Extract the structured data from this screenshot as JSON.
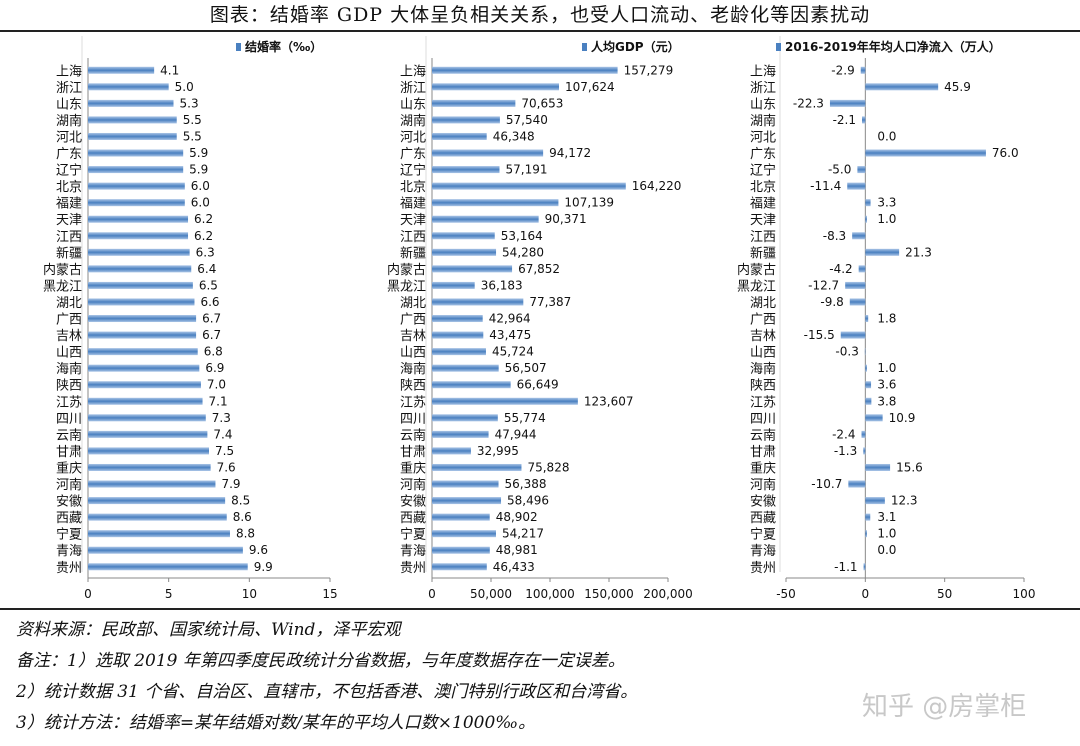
{
  "title": "图表：结婚率 GDP 大体呈负相关关系，也受人口流动、老龄化等因素扰动",
  "colors": {
    "bar": "#4a80c0",
    "bar_light": "#a9c4e6",
    "axis": "#888888"
  },
  "chart_data": [
    {
      "type": "bar",
      "orientation": "horizontal",
      "legend": "结婚率（‰）",
      "categories": [
        "上海",
        "浙江",
        "山东",
        "湖南",
        "河北",
        "广东",
        "辽宁",
        "北京",
        "福建",
        "天津",
        "江西",
        "新疆",
        "内蒙古",
        "黑龙江",
        "湖北",
        "广西",
        "吉林",
        "山西",
        "海南",
        "陕西",
        "江苏",
        "四川",
        "云南",
        "甘肃",
        "重庆",
        "河南",
        "安徽",
        "西藏",
        "宁夏",
        "青海",
        "贵州"
      ],
      "values": [
        4.1,
        5.0,
        5.3,
        5.5,
        5.5,
        5.9,
        5.9,
        6.0,
        6.0,
        6.2,
        6.2,
        6.3,
        6.4,
        6.5,
        6.6,
        6.7,
        6.7,
        6.8,
        6.9,
        7.0,
        7.1,
        7.3,
        7.4,
        7.5,
        7.6,
        7.9,
        8.5,
        8.6,
        8.8,
        9.6,
        9.9
      ],
      "labels": [
        "4.1",
        "5.0",
        "5.3",
        "5.5",
        "5.5",
        "5.9",
        "5.9",
        "6.0",
        "6.0",
        "6.2",
        "6.2",
        "6.3",
        "6.4",
        "6.5",
        "6.6",
        "6.7",
        "6.7",
        "6.8",
        "6.9",
        "7.0",
        "7.1",
        "7.3",
        "7.4",
        "7.5",
        "7.6",
        "7.9",
        "8.5",
        "8.6",
        "8.8",
        "9.6",
        "9.9"
      ],
      "xlim": [
        0,
        15
      ],
      "ticks": [
        0,
        5,
        10,
        15
      ],
      "tick_labels": [
        "0",
        "5",
        "10",
        "15"
      ]
    },
    {
      "type": "bar",
      "orientation": "horizontal",
      "legend": "人均GDP（元）",
      "categories": [
        "上海",
        "浙江",
        "山东",
        "湖南",
        "河北",
        "广东",
        "辽宁",
        "北京",
        "福建",
        "天津",
        "江西",
        "新疆",
        "内蒙古",
        "黑龙江",
        "湖北",
        "广西",
        "吉林",
        "山西",
        "海南",
        "陕西",
        "江苏",
        "四川",
        "云南",
        "甘肃",
        "重庆",
        "河南",
        "安徽",
        "西藏",
        "宁夏",
        "青海",
        "贵州"
      ],
      "values": [
        157279,
        107624,
        70653,
        57540,
        46348,
        94172,
        57191,
        164220,
        107139,
        90371,
        53164,
        54280,
        67852,
        36183,
        77387,
        42964,
        43475,
        45724,
        56507,
        66649,
        123607,
        55774,
        47944,
        32995,
        75828,
        56388,
        58496,
        48902,
        54217,
        48981,
        46433
      ],
      "labels": [
        "157,279",
        "107,624",
        "70,653",
        "57,540",
        "46,348",
        "94,172",
        "57,191",
        "164,220",
        "107,139",
        "90,371",
        "53,164",
        "54,280",
        "67,852",
        "36,183",
        "77,387",
        "42,964",
        "43,475",
        "45,724",
        "56,507",
        "66,649",
        "123,607",
        "55,774",
        "47,944",
        "32,995",
        "75,828",
        "56,388",
        "58,496",
        "48,902",
        "54,217",
        "48,981",
        "46,433"
      ],
      "xlim": [
        0,
        200000
      ],
      "ticks": [
        0,
        50000,
        100000,
        150000,
        200000
      ],
      "tick_labels": [
        "0",
        "50,000",
        "100,000",
        "150,000",
        "200,000"
      ]
    },
    {
      "type": "bar",
      "orientation": "horizontal",
      "legend": "2016-2019年年均人口净流入（万人）",
      "categories": [
        "上海",
        "浙江",
        "山东",
        "湖南",
        "河北",
        "广东",
        "辽宁",
        "北京",
        "福建",
        "天津",
        "江西",
        "新疆",
        "内蒙古",
        "黑龙江",
        "湖北",
        "广西",
        "吉林",
        "山西",
        "海南",
        "陕西",
        "江苏",
        "四川",
        "云南",
        "甘肃",
        "重庆",
        "河南",
        "安徽",
        "西藏",
        "宁夏",
        "青海",
        "贵州"
      ],
      "values": [
        -2.9,
        45.9,
        -22.3,
        -2.1,
        0.0,
        76.0,
        -5.0,
        -11.4,
        3.3,
        1.0,
        -8.3,
        21.3,
        -4.2,
        -12.7,
        -9.8,
        1.8,
        -15.5,
        -0.3,
        1.0,
        3.6,
        3.8,
        10.9,
        -2.4,
        -1.3,
        15.6,
        -10.7,
        12.3,
        3.1,
        1.0,
        0.0,
        -1.1
      ],
      "labels": [
        "-2.9",
        "45.9",
        "-22.3",
        "-2.1",
        "0.0",
        "76.0",
        "-5.0",
        "-11.4",
        "3.3",
        "1.0",
        "-8.3",
        "21.3",
        "-4.2",
        "-12.7",
        "-9.8",
        "1.8",
        "-15.5",
        "-0.3",
        "1.0",
        "3.6",
        "3.8",
        "10.9",
        "-2.4",
        "-1.3",
        "15.6",
        "-10.7",
        "12.3",
        "3.1",
        "1.0",
        "0.0",
        "-1.1"
      ],
      "xlim": [
        -50,
        100
      ],
      "ticks": [
        -50,
        0,
        50,
        100
      ],
      "tick_labels": [
        "-50",
        "0",
        "50",
        "100"
      ]
    }
  ],
  "notes": [
    "资料来源：民政部、国家统计局、Wind，泽平宏观",
    "备注：1）选取 2019 年第四季度民政统计分省数据，与年度数据存在一定误差。",
    "2）统计数据 31 个省、自治区、直辖市，不包括香港、澳门特别行政区和台湾省。",
    "3）统计方法：结婚率=某年结婚对数/某年的平均人口数×1000‰。"
  ],
  "watermark": "知乎 @房掌柜"
}
